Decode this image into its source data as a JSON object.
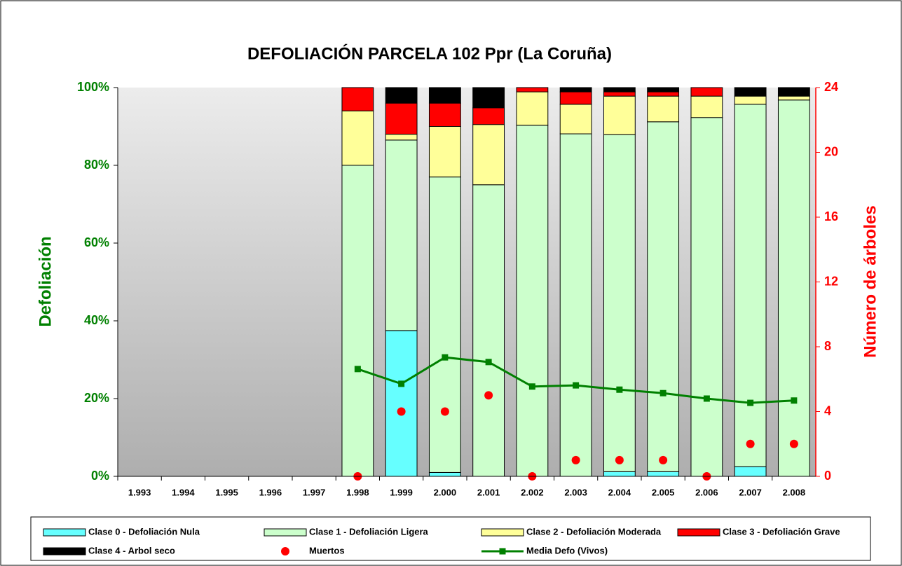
{
  "chart_data": {
    "type": "bar",
    "title": "DEFOLIACIÓN PARCELA 102 Ppr (La Coruña)",
    "y_label": "Defoliación",
    "y2_label": "Número de árboles",
    "categories": [
      "1.993",
      "1.994",
      "1.995",
      "1.996",
      "1.997",
      "1.998",
      "1.999",
      "2.000",
      "2.001",
      "2.002",
      "2.003",
      "2.004",
      "2.005",
      "2.006",
      "2.007",
      "2.008"
    ],
    "stacked": true,
    "ylim": [
      0,
      100
    ],
    "yticks": [
      {
        "value": 0,
        "label": "0%"
      },
      {
        "value": 20,
        "label": "20%"
      },
      {
        "value": 40,
        "label": "40%"
      },
      {
        "value": 60,
        "label": "60%"
      },
      {
        "value": 80,
        "label": "80%"
      },
      {
        "value": 100,
        "label": "100%"
      }
    ],
    "y2lim": [
      0,
      24
    ],
    "y2ticks": [
      0,
      4,
      8,
      12,
      16,
      20,
      24
    ],
    "series": [
      {
        "name": "Clase 0 - Defoliación Nula",
        "type": "bar",
        "color": "#66ffff",
        "values": [
          null,
          null,
          null,
          null,
          null,
          0,
          37.5,
          1,
          0,
          0,
          0,
          1.2,
          1.2,
          0,
          2.5,
          0
        ]
      },
      {
        "name": "Clase 1 - Defoliación Ligera",
        "type": "bar",
        "color": "#ccffcc",
        "values": [
          null,
          null,
          null,
          null,
          null,
          80,
          49,
          76,
          75,
          90.3,
          88.1,
          86.7,
          90,
          92.3,
          93.2,
          96.8
        ]
      },
      {
        "name": "Clase 2 - Defoliación Moderada",
        "type": "bar",
        "color": "#ffff99",
        "values": [
          null,
          null,
          null,
          null,
          null,
          14,
          1.5,
          13,
          15.5,
          8.6,
          7.6,
          9.9,
          6.6,
          5.5,
          2.1,
          1
        ]
      },
      {
        "name": "Clase 3 - Defoliación Grave",
        "type": "bar",
        "color": "#ff0000",
        "values": [
          null,
          null,
          null,
          null,
          null,
          6,
          8,
          6,
          4.3,
          1.1,
          3.2,
          1.1,
          1.1,
          2.2,
          0,
          0
        ]
      },
      {
        "name": "Clase 4 - Arbol seco",
        "type": "bar",
        "color": "#000000",
        "values": [
          null,
          null,
          null,
          null,
          null,
          0,
          4,
          4,
          5.2,
          0,
          1.1,
          1.1,
          1.1,
          0,
          2.2,
          2.2
        ]
      },
      {
        "name": "Muertos",
        "type": "scatter",
        "axis": "y2",
        "color": "#ff0000",
        "values": [
          null,
          null,
          null,
          null,
          null,
          0,
          4,
          4,
          5,
          0,
          1,
          1,
          1,
          0,
          2,
          2
        ]
      },
      {
        "name": "Media Defo (Vivos)",
        "type": "line",
        "color": "#008000",
        "values": [
          null,
          null,
          null,
          null,
          null,
          27.6,
          23.8,
          30.6,
          29.4,
          23.1,
          23.4,
          22.3,
          21.4,
          20,
          18.9,
          19.5
        ]
      }
    ],
    "legend": "bottom"
  }
}
